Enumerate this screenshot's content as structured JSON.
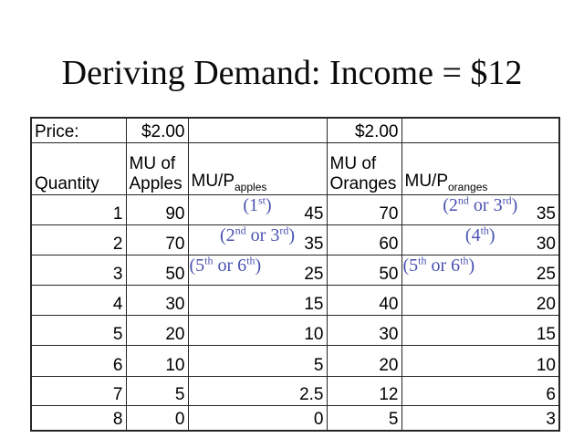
{
  "title": "Deriving Demand: Income = $12",
  "colors": {
    "background": "#ffffff",
    "text": "#000000",
    "border": "#262626",
    "annotation_blue": "#4a52b0"
  },
  "table": {
    "price_label": "Price:",
    "apple_price": "$2.00",
    "orange_price": "$2.00",
    "headers": {
      "quantity": "Quantity",
      "mu_apples": "MU of Apples",
      "mu_p_apples": [
        {
          "t": "MU/P"
        },
        {
          "sub": "apples"
        }
      ],
      "mu_oranges": "MU of Oranges",
      "mu_p_oranges": [
        {
          "t": "MU/P"
        },
        {
          "sub": "oranges"
        }
      ]
    },
    "rows": [
      {
        "quantity": "1",
        "mu_apples": "90",
        "mu_p_apples": "45",
        "mu_oranges": "70",
        "mu_p_oranges": "35",
        "ann_apples": [
          {
            "t": "(1"
          },
          {
            "sup": "st"
          },
          {
            "t": ")"
          }
        ],
        "ann_oranges": [
          {
            "t": "(2"
          },
          {
            "sup": "nd"
          },
          {
            "t": " or 3"
          },
          {
            "sup": "rd"
          },
          {
            "t": ")"
          }
        ]
      },
      {
        "quantity": "2",
        "mu_apples": "70",
        "mu_p_apples": "35",
        "mu_oranges": "60",
        "mu_p_oranges": "30",
        "ann_apples": [
          {
            "t": "(2"
          },
          {
            "sup": "nd"
          },
          {
            "t": " or 3"
          },
          {
            "sup": "rd"
          },
          {
            "t": ")"
          }
        ],
        "ann_oranges": [
          {
            "t": "(4"
          },
          {
            "sup": "th"
          },
          {
            "t": ")"
          }
        ]
      },
      {
        "quantity": "3",
        "mu_apples": "50",
        "mu_p_apples": "25",
        "mu_oranges": "50",
        "mu_p_oranges": "25",
        "ann_apples": [
          {
            "t": "(5"
          },
          {
            "sup": "th"
          },
          {
            "t": " or 6"
          },
          {
            "sup": "th"
          },
          {
            "t": ")"
          }
        ],
        "ann_oranges": [
          {
            "t": "(5"
          },
          {
            "sup": "th"
          },
          {
            "t": " or 6"
          },
          {
            "sup": "th"
          },
          {
            "t": ")"
          }
        ]
      },
      {
        "quantity": "4",
        "mu_apples": "30",
        "mu_p_apples": "15",
        "mu_oranges": "40",
        "mu_p_oranges": "20"
      },
      {
        "quantity": "5",
        "mu_apples": "20",
        "mu_p_apples": "10",
        "mu_oranges": "30",
        "mu_p_oranges": "15"
      },
      {
        "quantity": "6",
        "mu_apples": "10",
        "mu_p_apples": "5",
        "mu_oranges": "20",
        "mu_p_oranges": "10"
      },
      {
        "quantity": "7",
        "mu_apples": "5",
        "mu_p_apples": "2.5",
        "mu_oranges": "12",
        "mu_p_oranges": "6"
      },
      {
        "quantity": "8",
        "mu_apples": "0",
        "mu_p_apples": "0",
        "mu_oranges": "5",
        "mu_p_oranges": "3"
      }
    ]
  }
}
